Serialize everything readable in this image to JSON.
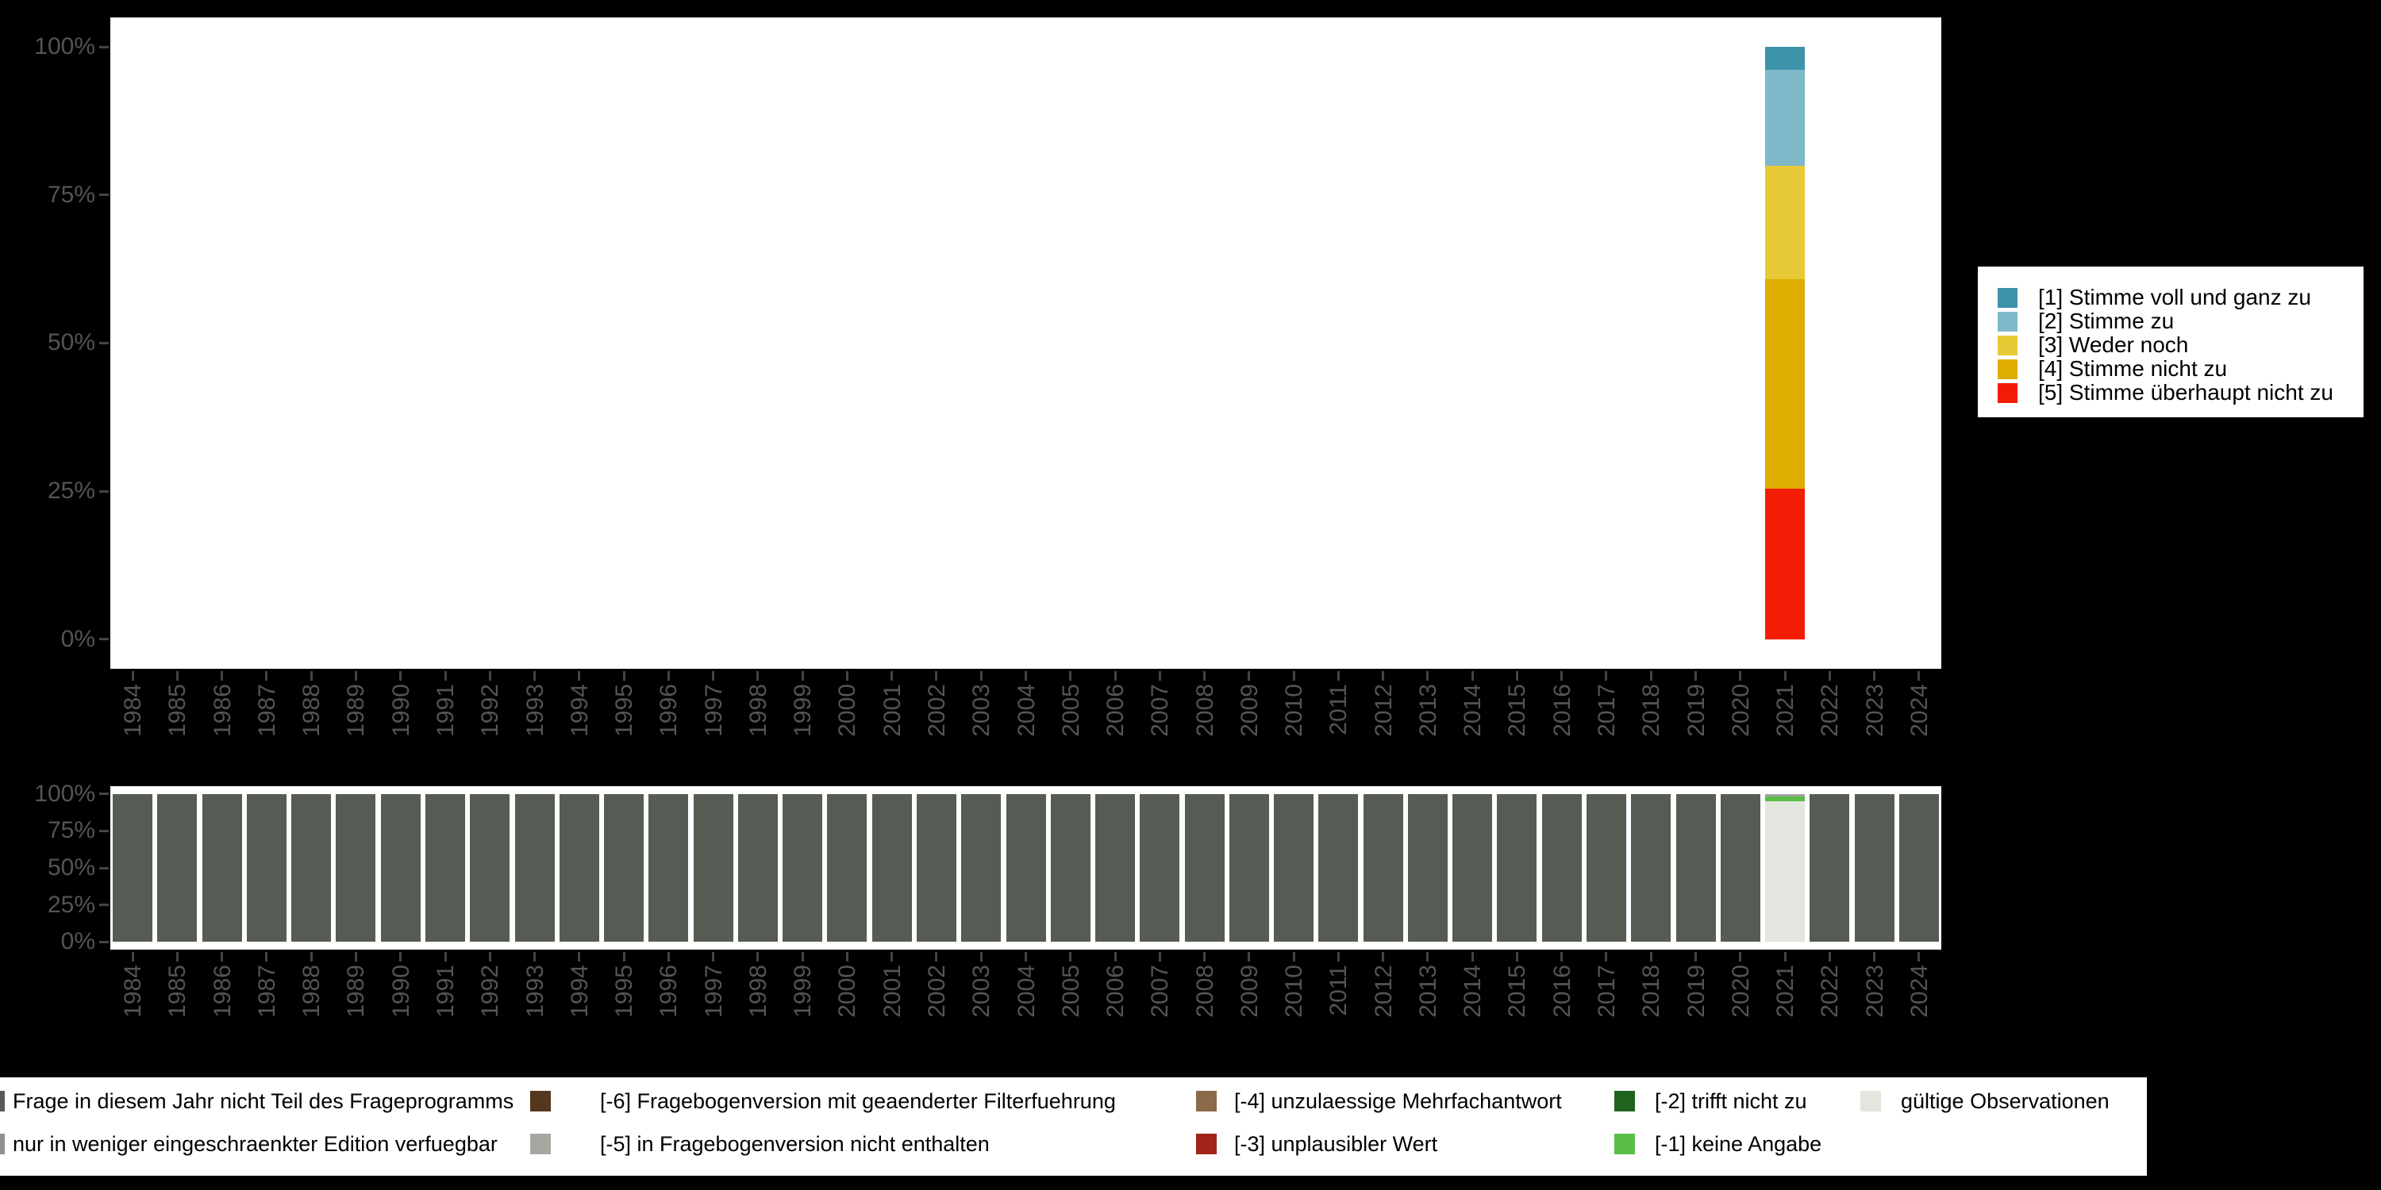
{
  "background": "#000000",
  "panel_color": "#ffffff",
  "axis": {
    "tick_color": "#444444",
    "label_color": "#545454",
    "y_tick_labels": [
      "0%",
      "25%",
      "50%",
      "75%",
      "100%"
    ]
  },
  "years": [
    "1984",
    "1985",
    "1986",
    "1987",
    "1988",
    "1989",
    "1990",
    "1991",
    "1992",
    "1993",
    "1994",
    "1995",
    "1996",
    "1997",
    "1998",
    "1999",
    "2000",
    "2001",
    "2002",
    "2003",
    "2004",
    "2005",
    "2006",
    "2007",
    "2008",
    "2009",
    "2010",
    "2011",
    "2012",
    "2013",
    "2014",
    "2015",
    "2016",
    "2017",
    "2018",
    "2019",
    "2020",
    "2021",
    "2022",
    "2023",
    "2024"
  ],
  "top_legend": {
    "items": [
      {
        "label": "[1] Stimme voll und ganz zu",
        "color": "#3d93aa"
      },
      {
        "label": "[2] Stimme zu",
        "color": "#7fb9c9"
      },
      {
        "label": "[3] Weder noch",
        "color": "#e8ca36"
      },
      {
        "label": "[4] Stimme nicht zu",
        "color": "#dfad00"
      },
      {
        "label": "[5] Stimme überhaupt nicht zu",
        "color": "#f21c04"
      }
    ]
  },
  "bottom_legend": {
    "rows": [
      [
        {
          "label": "Frage in diesem Jahr nicht Teil des Frageprogramms",
          "color": "#565b53"
        },
        {
          "label": "[-6] Fragebogenversion mit geaenderter Filterfuehrung",
          "color": "#56361c"
        },
        {
          "label": "[-4] unzulaessige Mehrfachantwort",
          "color": "#8a6a48"
        },
        {
          "label": "[-2] trifft nicht zu",
          "color": "#1e641e"
        },
        {
          "label": "gültige Observationen",
          "color": "#e2e6df"
        }
      ],
      [
        {
          "label": "nur in weniger eingeschraenkter Edition verfuegbar",
          "color": "#8f928c"
        },
        {
          "label": "[-5] in Fragebogenversion nicht enthalten",
          "color": "#a5a8a1"
        },
        {
          "label": "[-3] unplausibler Wert",
          "color": "#a32318"
        },
        {
          "label": "[-1] keine Angabe",
          "color": "#58bd45"
        }
      ]
    ]
  },
  "chart_data": [
    {
      "type": "bar",
      "stacked": true,
      "title": "",
      "xlabel": "",
      "ylabel": "",
      "ylim": [
        0,
        100
      ],
      "grid": false,
      "legend_position": "right",
      "categories": [
        "1984",
        "1985",
        "1986",
        "1987",
        "1988",
        "1989",
        "1990",
        "1991",
        "1992",
        "1993",
        "1994",
        "1995",
        "1996",
        "1997",
        "1998",
        "1999",
        "2000",
        "2001",
        "2002",
        "2003",
        "2004",
        "2005",
        "2006",
        "2007",
        "2008",
        "2009",
        "2010",
        "2011",
        "2012",
        "2013",
        "2014",
        "2015",
        "2016",
        "2017",
        "2018",
        "2019",
        "2020",
        "2021",
        "2022",
        "2023",
        "2024"
      ],
      "note": "only 2021 has observations; all other years empty",
      "series": [
        {
          "name": "[5] Stimme überhaupt nicht zu",
          "color": "#f21c04",
          "default": 0,
          "overrides": {
            "2021": 25.4
          }
        },
        {
          "name": "[4] Stimme nicht zu",
          "color": "#dfad00",
          "default": 0,
          "overrides": {
            "2021": 35.3
          }
        },
        {
          "name": "[3] Weder noch",
          "color": "#e8ca36",
          "default": 0,
          "overrides": {
            "2021": 19.2
          }
        },
        {
          "name": "[2] Stimme zu",
          "color": "#7fb9c9",
          "default": 0,
          "overrides": {
            "2021": 16.2
          }
        },
        {
          "name": "[1] Stimme voll und ganz zu",
          "color": "#3d93aa",
          "default": 0,
          "overrides": {
            "2021": 3.9
          }
        }
      ]
    },
    {
      "type": "bar",
      "stacked": true,
      "title": "",
      "ylim": [
        0,
        100
      ],
      "grid": false,
      "legend_position": "bottom",
      "categories": [
        "1984",
        "1985",
        "1986",
        "1987",
        "1988",
        "1989",
        "1990",
        "1991",
        "1992",
        "1993",
        "1994",
        "1995",
        "1996",
        "1997",
        "1998",
        "1999",
        "2000",
        "2001",
        "2002",
        "2003",
        "2004",
        "2005",
        "2006",
        "2007",
        "2008",
        "2009",
        "2010",
        "2011",
        "2012",
        "2013",
        "2014",
        "2015",
        "2016",
        "2017",
        "2018",
        "2019",
        "2020",
        "2021",
        "2022",
        "2023",
        "2024"
      ],
      "series": [
        {
          "name": "Frage in diesem Jahr nicht Teil des Frageprogramms",
          "color": "#565b53",
          "default": 100,
          "overrides": {
            "2021": 0
          }
        },
        {
          "name": "gültige Observationen",
          "color": "#e2e6df",
          "default": 0,
          "overrides": {
            "2021": 95
          }
        },
        {
          "name": "[-1] keine Angabe",
          "color": "#58bd45",
          "default": 0,
          "overrides": {
            "2021": 3
          }
        },
        {
          "name": "[-5] in Fragebogenversion nicht enthalten",
          "color": "#a0a39c",
          "default": 0,
          "overrides": {
            "2021": 2
          }
        }
      ]
    }
  ]
}
